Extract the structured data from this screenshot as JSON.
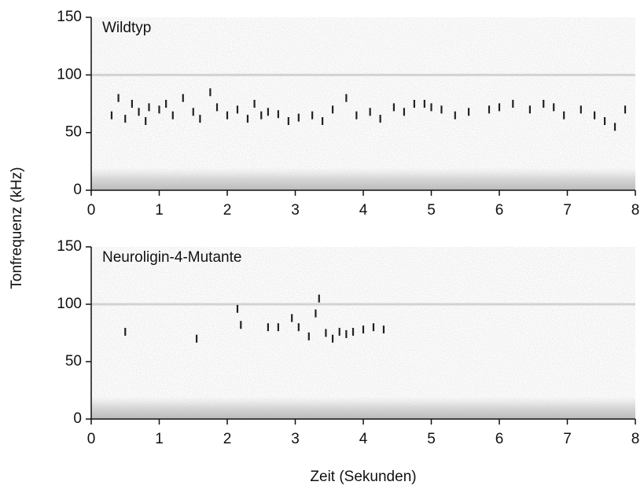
{
  "chart_data": [
    {
      "type": "scatter",
      "title": "Wildtyp",
      "ylabel": "Tonfrequenz (kHz)",
      "color": "#222",
      "x": [
        0.3,
        0.4,
        0.5,
        0.6,
        0.7,
        0.8,
        0.85,
        1.0,
        1.1,
        1.2,
        1.35,
        1.5,
        1.6,
        1.75,
        1.85,
        2.0,
        2.15,
        2.3,
        2.4,
        2.5,
        2.6,
        2.75,
        2.9,
        3.05,
        3.25,
        3.4,
        3.55,
        3.75,
        3.9,
        4.1,
        4.25,
        4.45,
        4.6,
        4.75,
        4.9,
        5.0,
        5.15,
        5.35,
        5.55,
        5.85,
        6.0,
        6.2,
        6.45,
        6.65,
        6.8,
        6.95,
        7.2,
        7.4,
        7.55,
        7.7,
        7.85
      ],
      "y": [
        65,
        80,
        62,
        75,
        68,
        60,
        72,
        70,
        75,
        65,
        80,
        68,
        62,
        85,
        72,
        65,
        70,
        62,
        75,
        65,
        68,
        66,
        60,
        63,
        65,
        60,
        70,
        80,
        65,
        68,
        62,
        72,
        68,
        75,
        75,
        72,
        70,
        65,
        68,
        70,
        72,
        75,
        70,
        75,
        72,
        65,
        70,
        65,
        60,
        55,
        70
      ],
      "xlim": [
        0,
        8
      ],
      "ylim": [
        0,
        150
      ],
      "xticks": [
        0,
        1,
        2,
        3,
        4,
        5,
        6,
        7,
        8
      ],
      "yticks": [
        0,
        50,
        100,
        150
      ]
    },
    {
      "type": "scatter",
      "title": "Neuroligin-4-Mutante",
      "xlabel": "Zeit (Sekunden)",
      "color": "#222",
      "x": [
        0.5,
        1.55,
        2.15,
        2.2,
        2.6,
        2.75,
        2.95,
        3.05,
        3.2,
        3.3,
        3.35,
        3.45,
        3.55,
        3.65,
        3.75,
        3.85,
        4.0,
        4.15,
        4.3
      ],
      "y": [
        76,
        70,
        96,
        82,
        80,
        80,
        88,
        80,
        72,
        92,
        105,
        75,
        70,
        76,
        74,
        76,
        78,
        80,
        78
      ],
      "xlim": [
        0,
        8
      ],
      "ylim": [
        0,
        150
      ],
      "xticks": [
        0,
        1,
        2,
        3,
        4,
        5,
        6,
        7,
        8
      ],
      "yticks": [
        0,
        50,
        100,
        150
      ]
    }
  ]
}
